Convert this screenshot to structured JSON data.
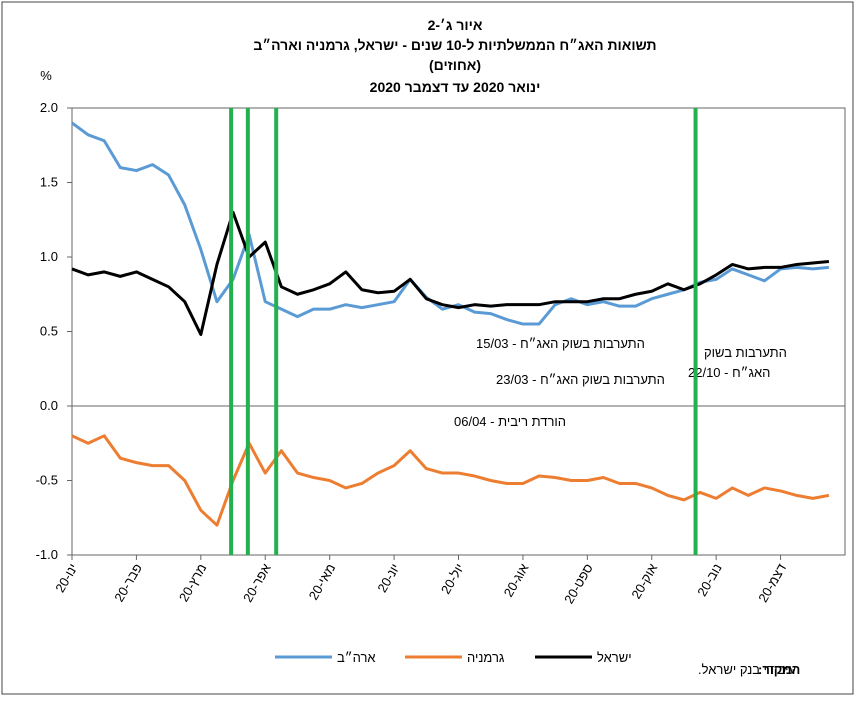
{
  "chart_data": {
    "type": "line",
    "title": "איור ג׳-2",
    "subtitle": "תשואות האג״ח הממשלתיות ל-10 שנים - ישראל, גרמניה וארה״ב",
    "subtitle2": "(אחוזים)",
    "period": "ינואר 2020 עד דצמבר 2020",
    "y_unit": "%",
    "source_label": "המקור:",
    "source_text": "עיבודי בנק ישראל.",
    "x": [
      1,
      1.25,
      1.5,
      1.75,
      2,
      2.25,
      2.5,
      2.75,
      3,
      3.25,
      3.5,
      3.75,
      4,
      4.25,
      4.5,
      4.75,
      5,
      5.25,
      5.5,
      5.75,
      6,
      6.25,
      6.5,
      6.75,
      7,
      7.25,
      7.5,
      7.75,
      8,
      8.25,
      8.5,
      8.75,
      9,
      9.25,
      9.5,
      9.75,
      10,
      10.25,
      10.5,
      10.75,
      11,
      11.25,
      11.5,
      11.75,
      12,
      12.25,
      12.5,
      12.75
    ],
    "xlim": [
      1,
      13
    ],
    "xticks": [
      {
        "value": 1,
        "label": "ינו-20"
      },
      {
        "value": 2,
        "label": "פבר-20"
      },
      {
        "value": 3,
        "label": "מרץ-20"
      },
      {
        "value": 4,
        "label": "אפר-20"
      },
      {
        "value": 5,
        "label": "מאי-20"
      },
      {
        "value": 6,
        "label": "יונ-20"
      },
      {
        "value": 7,
        "label": "יול-20"
      },
      {
        "value": 8,
        "label": "אוג-20"
      },
      {
        "value": 9,
        "label": "ספט-20"
      },
      {
        "value": 10,
        "label": "אוק-20"
      },
      {
        "value": 11,
        "label": "נוב-20"
      },
      {
        "value": 12,
        "label": "דצמ-20"
      }
    ],
    "ylim": [
      -1,
      2
    ],
    "yticks": [
      {
        "value": 2,
        "label": "2.0"
      },
      1.5,
      {
        "value": 1,
        "label": "1.0"
      },
      0.5,
      {
        "value": 0,
        "label": "0.0"
      },
      -0.5,
      {
        "value": -1,
        "label": "-1.0"
      }
    ],
    "grid": false,
    "legend": "bottom",
    "series": [
      {
        "name": "ארה״ב",
        "color": "#5b9bd5",
        "values": [
          1.9,
          1.82,
          1.78,
          1.6,
          1.58,
          1.62,
          1.55,
          1.35,
          1.05,
          0.7,
          0.85,
          1.15,
          0.7,
          0.65,
          0.6,
          0.65,
          0.65,
          0.68,
          0.66,
          0.68,
          0.7,
          0.85,
          0.73,
          0.65,
          0.68,
          0.63,
          0.62,
          0.58,
          0.55,
          0.55,
          0.68,
          0.72,
          0.68,
          0.7,
          0.67,
          0.67,
          0.72,
          0.75,
          0.78,
          0.83,
          0.85,
          0.92,
          0.88,
          0.84,
          0.92,
          0.93,
          0.92,
          0.93
        ]
      },
      {
        "name": "גרמניה",
        "color": "#ed7d31",
        "values": [
          -0.2,
          -0.25,
          -0.2,
          -0.35,
          -0.38,
          -0.4,
          -0.4,
          -0.5,
          -0.7,
          -0.8,
          -0.5,
          -0.25,
          -0.45,
          -0.3,
          -0.45,
          -0.48,
          -0.5,
          -0.55,
          -0.52,
          -0.45,
          -0.4,
          -0.3,
          -0.42,
          -0.45,
          -0.45,
          -0.47,
          -0.5,
          -0.52,
          -0.52,
          -0.47,
          -0.48,
          -0.5,
          -0.5,
          -0.48,
          -0.52,
          -0.52,
          -0.55,
          -0.6,
          -0.63,
          -0.58,
          -0.62,
          -0.55,
          -0.6,
          -0.55,
          -0.57,
          -0.6,
          -0.62,
          -0.6
        ]
      },
      {
        "name": "ישראל",
        "color": "#000000",
        "values": [
          0.92,
          0.88,
          0.9,
          0.87,
          0.9,
          0.85,
          0.8,
          0.7,
          0.48,
          0.95,
          1.3,
          1.0,
          1.1,
          0.8,
          0.75,
          0.78,
          0.82,
          0.9,
          0.78,
          0.76,
          0.77,
          0.85,
          0.72,
          0.68,
          0.66,
          0.68,
          0.67,
          0.68,
          0.68,
          0.68,
          0.7,
          0.7,
          0.7,
          0.72,
          0.72,
          0.75,
          0.77,
          0.82,
          0.78,
          0.82,
          0.88,
          0.95,
          0.92,
          0.93,
          0.93,
          0.95,
          0.96,
          0.97
        ]
      }
    ],
    "vlines": [
      3.47,
      3.73,
      4.17,
      10.68
    ],
    "vline_color": "#22b14c",
    "annotations": [
      "התערבות בשוק האג״ח - 15/03",
      "התערבות בשוק האג״ח - 23/03",
      "הורדת ריבית - 06/04",
      "התערבות בשוק",
      "האג״ח - 22/10"
    ]
  }
}
